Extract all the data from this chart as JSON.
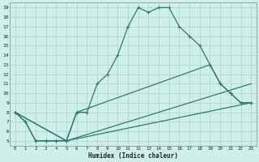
{
  "xlabel": "Humidex (Indice chaleur)",
  "bg_color": "#cff0ea",
  "grid_color": "#b0d8d4",
  "line_color": "#2d7a6e",
  "xlim": [
    -0.5,
    23.5
  ],
  "ylim": [
    4.5,
    19.5
  ],
  "xticks": [
    0,
    1,
    2,
    3,
    4,
    5,
    6,
    7,
    8,
    9,
    10,
    11,
    12,
    13,
    14,
    15,
    16,
    17,
    18,
    19,
    20,
    21,
    22,
    23
  ],
  "yticks": [
    5,
    6,
    7,
    8,
    9,
    10,
    11,
    12,
    13,
    14,
    15,
    16,
    17,
    18,
    19
  ],
  "line1_x": [
    0,
    1,
    2,
    3,
    4,
    5,
    6,
    7,
    8,
    9,
    10,
    11,
    12,
    13,
    14,
    15,
    16,
    17,
    18,
    19,
    20,
    21,
    22,
    23
  ],
  "line1_y": [
    8,
    7,
    5,
    5,
    5,
    5,
    8,
    8,
    11,
    12,
    14,
    17,
    19,
    18.5,
    19,
    19,
    17,
    16,
    15,
    13,
    11,
    10,
    9,
    9
  ],
  "line2_x": [
    0,
    1,
    2,
    3,
    4,
    5,
    6,
    19,
    20,
    21,
    22,
    23
  ],
  "line2_y": [
    8,
    7,
    5,
    5,
    5,
    5,
    8,
    13,
    11,
    10,
    9,
    9
  ],
  "line3_x": [
    0,
    5,
    23
  ],
  "line3_y": [
    8,
    5,
    11
  ],
  "line4_x": [
    0,
    5,
    23
  ],
  "line4_y": [
    8,
    5,
    9
  ]
}
